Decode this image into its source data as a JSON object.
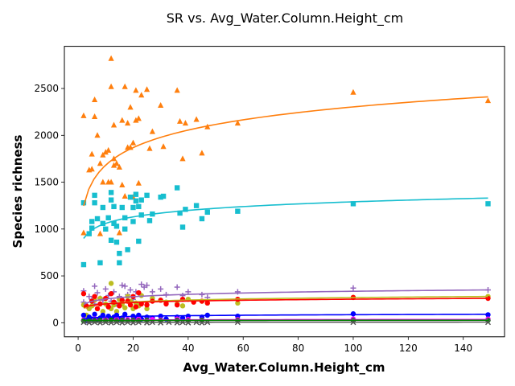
{
  "chart_data": {
    "type": "scatter",
    "title": "SR vs. Avg_Water.Column.Height_cm",
    "xlabel": "Avg_Water.Column.Height_cm",
    "ylabel": "Species richness",
    "xlim": [
      -5,
      155
    ],
    "ylim": [
      -150,
      2950
    ],
    "xticks": [
      0,
      20,
      40,
      60,
      80,
      100,
      120,
      140
    ],
    "yticks": [
      0,
      500,
      1000,
      1500,
      2000,
      2500
    ],
    "grid": false,
    "series": [
      {
        "color": "#ff7f0e",
        "marker": "triangle",
        "fit": {
          "a": 1060,
          "b": 270
        },
        "points": [
          [
            2,
            2210
          ],
          [
            2,
            960
          ],
          [
            4,
            1630
          ],
          [
            5,
            1800
          ],
          [
            5,
            1640
          ],
          [
            6,
            2200
          ],
          [
            6,
            2380
          ],
          [
            7,
            2000
          ],
          [
            8,
            950
          ],
          [
            8,
            1700
          ],
          [
            9,
            1790
          ],
          [
            9,
            1500
          ],
          [
            10,
            1820
          ],
          [
            11,
            1840
          ],
          [
            11,
            1500
          ],
          [
            12,
            2820
          ],
          [
            12,
            2520
          ],
          [
            12,
            1500
          ],
          [
            13,
            1680
          ],
          [
            13,
            1750
          ],
          [
            13,
            2110
          ],
          [
            14,
            1700
          ],
          [
            15,
            960
          ],
          [
            15,
            1660
          ],
          [
            16,
            2160
          ],
          [
            16,
            1470
          ],
          [
            17,
            2520
          ],
          [
            17,
            1350
          ],
          [
            18,
            1870
          ],
          [
            18,
            2130
          ],
          [
            19,
            2300
          ],
          [
            19,
            1870
          ],
          [
            20,
            1920
          ],
          [
            20,
            1340
          ],
          [
            21,
            2480
          ],
          [
            21,
            2160
          ],
          [
            22,
            2180
          ],
          [
            22,
            1490
          ],
          [
            23,
            2430
          ],
          [
            25,
            2490
          ],
          [
            26,
            1860
          ],
          [
            27,
            2040
          ],
          [
            30,
            2320
          ],
          [
            31,
            1880
          ],
          [
            36,
            2480
          ],
          [
            37,
            2150
          ],
          [
            38,
            1750
          ],
          [
            39,
            2130
          ],
          [
            43,
            2170
          ],
          [
            45,
            1810
          ],
          [
            47,
            2090
          ],
          [
            58,
            2130
          ],
          [
            100,
            2460
          ],
          [
            149,
            2370
          ]
        ]
      },
      {
        "color": "#17becf",
        "marker": "square",
        "fit": {
          "a": 830,
          "b": 100
        },
        "points": [
          [
            2,
            1280
          ],
          [
            2,
            620
          ],
          [
            4,
            950
          ],
          [
            5,
            1010
          ],
          [
            5,
            1080
          ],
          [
            6,
            1360
          ],
          [
            6,
            1280
          ],
          [
            7,
            1110
          ],
          [
            8,
            640
          ],
          [
            9,
            1060
          ],
          [
            9,
            1230
          ],
          [
            10,
            1000
          ],
          [
            11,
            1120
          ],
          [
            12,
            880
          ],
          [
            12,
            1390
          ],
          [
            12,
            1310
          ],
          [
            13,
            1240
          ],
          [
            13,
            1060
          ],
          [
            14,
            1030
          ],
          [
            14,
            860
          ],
          [
            15,
            740
          ],
          [
            15,
            640
          ],
          [
            16,
            1230
          ],
          [
            17,
            1120
          ],
          [
            17,
            1000
          ],
          [
            18,
            780
          ],
          [
            19,
            1340
          ],
          [
            20,
            1080
          ],
          [
            20,
            1230
          ],
          [
            21,
            1370
          ],
          [
            21,
            1300
          ],
          [
            22,
            1240
          ],
          [
            22,
            870
          ],
          [
            23,
            1310
          ],
          [
            23,
            1150
          ],
          [
            25,
            1360
          ],
          [
            26,
            1090
          ],
          [
            27,
            1160
          ],
          [
            30,
            1340
          ],
          [
            31,
            1350
          ],
          [
            36,
            1440
          ],
          [
            37,
            1170
          ],
          [
            38,
            1020
          ],
          [
            39,
            1210
          ],
          [
            43,
            1250
          ],
          [
            45,
            1110
          ],
          [
            47,
            1180
          ],
          [
            58,
            1190
          ],
          [
            100,
            1270
          ],
          [
            149,
            1270
          ]
        ]
      },
      {
        "color": "#9467bd",
        "marker": "plus",
        "fit": {
          "a": 170,
          "b": 36
        },
        "points": [
          [
            2,
            340
          ],
          [
            2,
            220
          ],
          [
            4,
            280
          ],
          [
            5,
            250
          ],
          [
            6,
            390
          ],
          [
            6,
            200
          ],
          [
            7,
            320
          ],
          [
            8,
            260
          ],
          [
            9,
            240
          ],
          [
            10,
            360
          ],
          [
            11,
            290
          ],
          [
            12,
            230
          ],
          [
            13,
            330
          ],
          [
            14,
            200
          ],
          [
            15,
            280
          ],
          [
            16,
            400
          ],
          [
            17,
            390
          ],
          [
            18,
            300
          ],
          [
            19,
            350
          ],
          [
            20,
            250
          ],
          [
            21,
            330
          ],
          [
            22,
            310
          ],
          [
            23,
            410
          ],
          [
            24,
            380
          ],
          [
            25,
            400
          ],
          [
            27,
            330
          ],
          [
            30,
            360
          ],
          [
            32,
            300
          ],
          [
            36,
            380
          ],
          [
            38,
            290
          ],
          [
            40,
            330
          ],
          [
            45,
            300
          ],
          [
            47,
            270
          ],
          [
            58,
            330
          ],
          [
            100,
            370
          ],
          [
            149,
            350
          ]
        ]
      },
      {
        "color": "#bcbd22",
        "marker": "circle",
        "fit": {
          "a": 135,
          "b": 29
        },
        "points": [
          [
            2,
            190
          ],
          [
            3,
            80
          ],
          [
            4,
            150
          ],
          [
            5,
            180
          ],
          [
            6,
            240
          ],
          [
            7,
            150
          ],
          [
            8,
            260
          ],
          [
            9,
            120
          ],
          [
            10,
            200
          ],
          [
            11,
            170
          ],
          [
            12,
            420
          ],
          [
            12,
            150
          ],
          [
            13,
            190
          ],
          [
            14,
            120
          ],
          [
            15,
            250
          ],
          [
            16,
            200
          ],
          [
            17,
            160
          ],
          [
            18,
            280
          ],
          [
            19,
            230
          ],
          [
            20,
            150
          ],
          [
            21,
            210
          ],
          [
            22,
            180
          ],
          [
            23,
            290
          ],
          [
            25,
            150
          ],
          [
            27,
            260
          ],
          [
            30,
            240
          ],
          [
            32,
            220
          ],
          [
            36,
            200
          ],
          [
            38,
            180
          ],
          [
            40,
            250
          ],
          [
            45,
            230
          ],
          [
            47,
            210
          ],
          [
            58,
            210
          ],
          [
            100,
            270
          ],
          [
            149,
            280
          ]
        ]
      },
      {
        "color": "#ff0000",
        "marker": "circle",
        "fit": {
          "a": 150,
          "b": 22
        },
        "points": [
          [
            2,
            310
          ],
          [
            3,
            180
          ],
          [
            5,
            230
          ],
          [
            6,
            280
          ],
          [
            7,
            150
          ],
          [
            8,
            200
          ],
          [
            10,
            260
          ],
          [
            11,
            170
          ],
          [
            12,
            310
          ],
          [
            13,
            220
          ],
          [
            15,
            180
          ],
          [
            16,
            240
          ],
          [
            18,
            230
          ],
          [
            19,
            190
          ],
          [
            20,
            280
          ],
          [
            21,
            170
          ],
          [
            22,
            320
          ],
          [
            23,
            200
          ],
          [
            25,
            190
          ],
          [
            27,
            230
          ],
          [
            30,
            240
          ],
          [
            32,
            200
          ],
          [
            36,
            190
          ],
          [
            38,
            250
          ],
          [
            42,
            220
          ],
          [
            45,
            230
          ],
          [
            47,
            210
          ],
          [
            58,
            250
          ],
          [
            100,
            270
          ],
          [
            149,
            260
          ]
        ]
      },
      {
        "color": "#0000ff",
        "marker": "circle",
        "fit": {
          "a": 35,
          "b": 11
        },
        "points": [
          [
            2,
            80
          ],
          [
            3,
            20
          ],
          [
            4,
            60
          ],
          [
            5,
            40
          ],
          [
            6,
            90
          ],
          [
            7,
            30
          ],
          [
            8,
            50
          ],
          [
            9,
            80
          ],
          [
            10,
            40
          ],
          [
            11,
            70
          ],
          [
            12,
            30
          ],
          [
            13,
            60
          ],
          [
            14,
            80
          ],
          [
            15,
            40
          ],
          [
            16,
            50
          ],
          [
            17,
            90
          ],
          [
            18,
            30
          ],
          [
            20,
            70
          ],
          [
            21,
            50
          ],
          [
            22,
            80
          ],
          [
            23,
            40
          ],
          [
            25,
            60
          ],
          [
            27,
            50
          ],
          [
            30,
            70
          ],
          [
            32,
            40
          ],
          [
            36,
            60
          ],
          [
            38,
            50
          ],
          [
            40,
            70
          ],
          [
            45,
            60
          ],
          [
            47,
            80
          ],
          [
            58,
            70
          ],
          [
            100,
            95
          ],
          [
            149,
            85
          ]
        ]
      },
      {
        "color": "#ff00ff",
        "marker": "circle",
        "fit": {
          "a": 20,
          "b": 3
        },
        "points": [
          [
            2,
            30
          ],
          [
            4,
            20
          ],
          [
            6,
            40
          ],
          [
            8,
            25
          ],
          [
            10,
            35
          ],
          [
            12,
            30
          ],
          [
            14,
            40
          ],
          [
            16,
            30
          ],
          [
            18,
            35
          ],
          [
            20,
            30
          ],
          [
            22,
            40
          ],
          [
            25,
            30
          ],
          [
            27,
            35
          ],
          [
            30,
            30
          ],
          [
            36,
            40
          ],
          [
            40,
            35
          ],
          [
            45,
            30
          ],
          [
            58,
            35
          ],
          [
            100,
            40
          ],
          [
            149,
            40
          ]
        ]
      },
      {
        "color": "#008000",
        "marker": "circle",
        "fit": {
          "a": 22,
          "b": 1
        },
        "points": [
          [
            2,
            20
          ],
          [
            4,
            25
          ],
          [
            6,
            20
          ],
          [
            8,
            25
          ],
          [
            10,
            20
          ],
          [
            12,
            30
          ],
          [
            14,
            20
          ],
          [
            16,
            25
          ],
          [
            18,
            20
          ],
          [
            20,
            25
          ],
          [
            22,
            20
          ],
          [
            25,
            25
          ],
          [
            30,
            20
          ],
          [
            36,
            25
          ],
          [
            40,
            20
          ],
          [
            45,
            25
          ],
          [
            58,
            25
          ],
          [
            100,
            25
          ],
          [
            149,
            25
          ]
        ]
      },
      {
        "color": "#555555",
        "marker": "x",
        "fit": {
          "a": 2,
          "b": 1
        },
        "points": [
          [
            2,
            5
          ],
          [
            4,
            0
          ],
          [
            6,
            5
          ],
          [
            8,
            0
          ],
          [
            10,
            5
          ],
          [
            12,
            0
          ],
          [
            14,
            5
          ],
          [
            16,
            0
          ],
          [
            18,
            5
          ],
          [
            20,
            0
          ],
          [
            22,
            5
          ],
          [
            25,
            0
          ],
          [
            27,
            5
          ],
          [
            30,
            0
          ],
          [
            33,
            5
          ],
          [
            36,
            0
          ],
          [
            38,
            5
          ],
          [
            40,
            0
          ],
          [
            43,
            5
          ],
          [
            45,
            0
          ],
          [
            47,
            5
          ],
          [
            58,
            5
          ],
          [
            100,
            5
          ],
          [
            149,
            5
          ]
        ]
      }
    ]
  }
}
